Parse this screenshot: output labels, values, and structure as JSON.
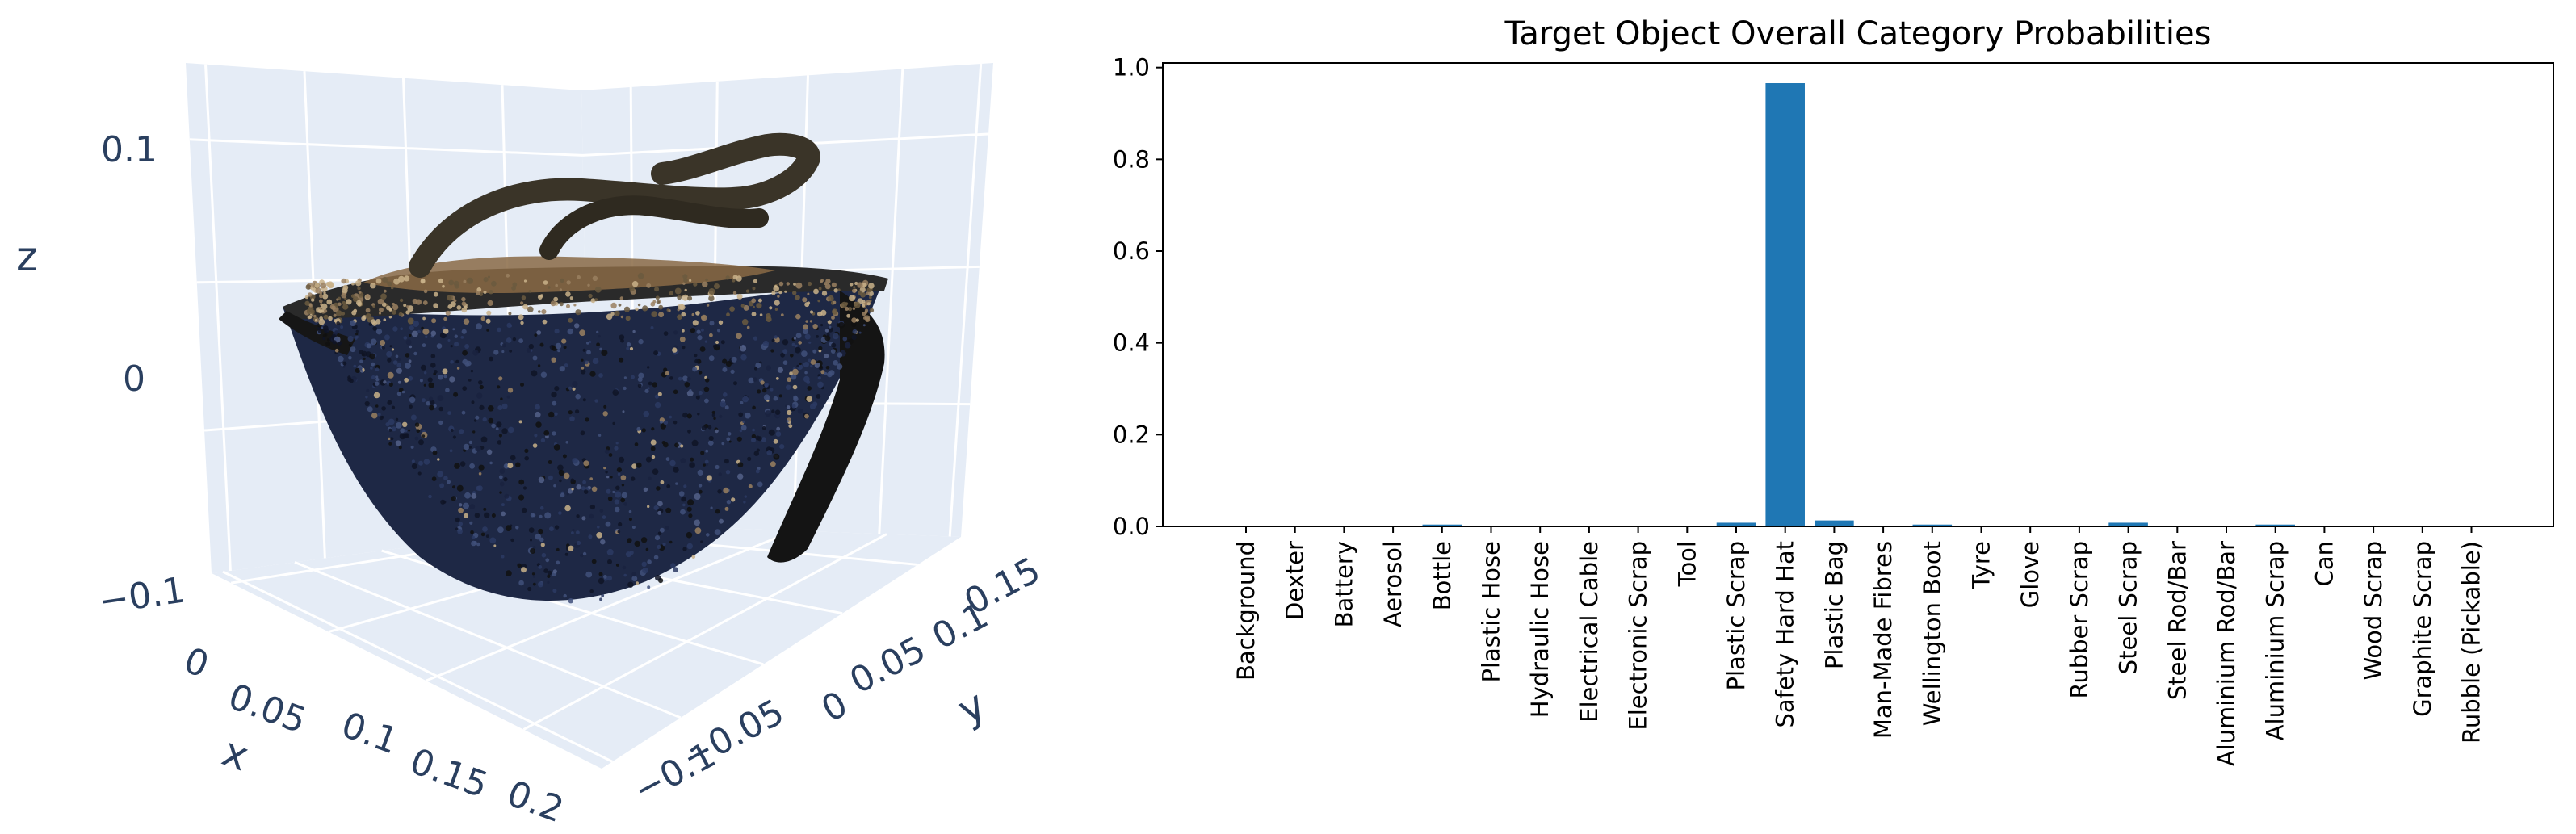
{
  "scene_3d": {
    "axis_labels": {
      "x": "x",
      "y": "y",
      "z": "z"
    },
    "x_ticks": [
      "0",
      "0.05",
      "0.1",
      "0.15",
      "0.2"
    ],
    "y_ticks": [
      "−0.1",
      "−0.05",
      "0",
      "0.05",
      "0.1",
      "0.15"
    ],
    "z_ticks": [
      "0.1",
      "0",
      "−0.1"
    ],
    "colors": {
      "pane": "#e5ecf6",
      "grid": "#ffffff",
      "text": "#2a3f5f",
      "helmet_shell": "#1e2845",
      "helmet_interior": "#8a6a45"
    }
  },
  "chart_data": {
    "type": "bar",
    "title": "Target Object Overall Category Probabilities",
    "xlabel": "",
    "ylabel": "",
    "ylim": [
      0,
      1.01
    ],
    "yticks": [
      "0.0",
      "0.2",
      "0.4",
      "0.6",
      "0.8",
      "1.0"
    ],
    "categories": [
      "Background",
      "Dexter",
      "Battery",
      "Aerosol",
      "Bottle",
      "Plastic Hose",
      "Hydraulic Hose",
      "Electrical Cable",
      "Electronic Scrap",
      "Tool",
      "Plastic Scrap",
      "Safety Hard Hat",
      "Plastic Bag",
      "Man-Made Fibres",
      "Wellington Boot",
      "Tyre",
      "Glove",
      "Rubber Scrap",
      "Steel Scrap",
      "Steel Rod/Bar",
      "Aluminium Rod/Bar",
      "Aluminium Scrap",
      "Can",
      "Wood Scrap",
      "Graphite Scrap",
      "Rubble (Pickable)"
    ],
    "values": [
      0.0,
      0.0,
      0.0,
      0.0,
      0.004,
      0.0,
      0.0,
      0.0,
      0.0,
      0.0,
      0.008,
      0.966,
      0.013,
      0.0,
      0.004,
      0.0,
      0.0,
      0.0,
      0.008,
      0.0,
      0.0,
      0.004,
      0.0,
      0.0,
      0.0,
      0.0
    ],
    "bar_color": "#1f77b4",
    "grid": false
  }
}
